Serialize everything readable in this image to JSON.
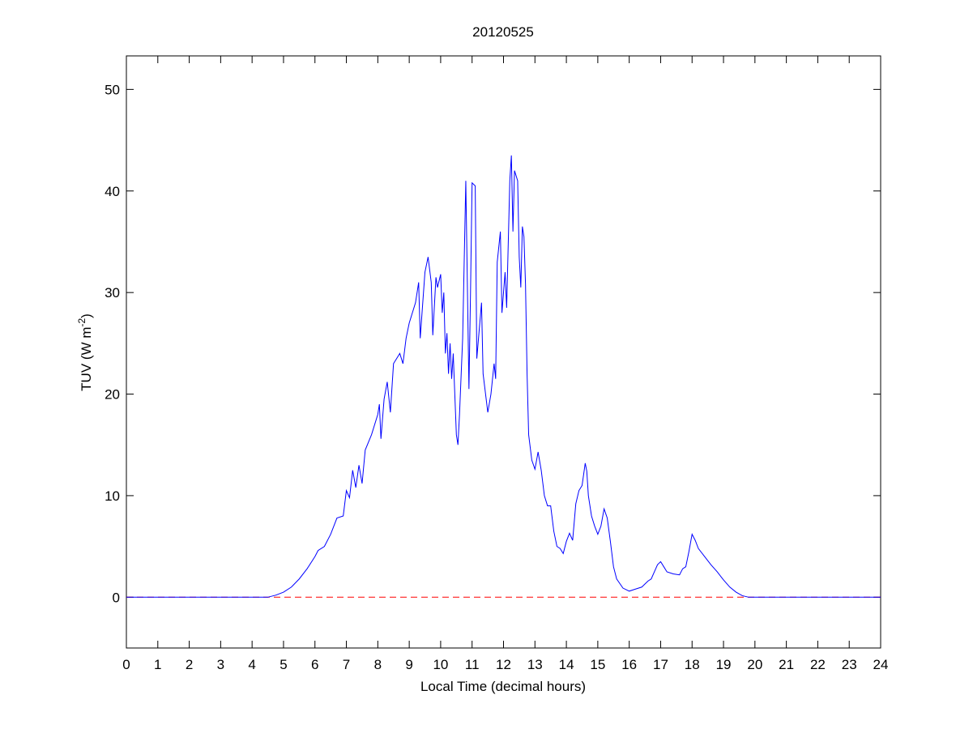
{
  "chart_data": {
    "type": "line",
    "title": "20120525",
    "xlabel": "Local Time (decimal hours)",
    "ylabel": {
      "base": "TUV (W m",
      "sup": "-2",
      "end": ")"
    },
    "xlim": [
      0,
      24
    ],
    "ylim": [
      -5,
      53.3
    ],
    "xticks": [
      0,
      1,
      2,
      3,
      4,
      5,
      6,
      7,
      8,
      9,
      10,
      11,
      12,
      13,
      14,
      15,
      16,
      17,
      18,
      19,
      20,
      21,
      22,
      23,
      24
    ],
    "yticks": [
      0,
      10,
      20,
      30,
      40,
      50
    ],
    "grid": false,
    "reference_line": {
      "value": 0,
      "color": "#ff0000",
      "dashed": true
    },
    "series": [
      {
        "color": "#0000ff",
        "x": [
          0,
          4.5,
          4.75,
          5,
          5.25,
          5.5,
          5.75,
          6,
          6.1,
          6.3,
          6.5,
          6.7,
          6.9,
          7.0,
          7.1,
          7.2,
          7.3,
          7.4,
          7.5,
          7.6,
          7.8,
          8.0,
          8.05,
          8.1,
          8.2,
          8.3,
          8.4,
          8.5,
          8.7,
          8.8,
          8.9,
          9.0,
          9.2,
          9.3,
          9.35,
          9.5,
          9.6,
          9.7,
          9.75,
          9.85,
          9.9,
          10.0,
          10.05,
          10.1,
          10.15,
          10.2,
          10.25,
          10.3,
          10.35,
          10.4,
          10.5,
          10.55,
          10.6,
          10.7,
          10.8,
          10.9,
          10.95,
          11.0,
          11.1,
          11.15,
          11.3,
          11.35,
          11.5,
          11.6,
          11.7,
          11.75,
          11.8,
          11.9,
          11.95,
          12.05,
          12.1,
          12.2,
          12.25,
          12.3,
          12.35,
          12.45,
          12.5,
          12.55,
          12.6,
          12.65,
          12.7,
          12.75,
          12.8,
          12.9,
          13.0,
          13.1,
          13.2,
          13.3,
          13.4,
          13.5,
          13.6,
          13.7,
          13.8,
          13.9,
          14.0,
          14.1,
          14.2,
          14.3,
          14.4,
          14.5,
          14.6,
          14.65,
          14.7,
          14.8,
          14.9,
          15.0,
          15.1,
          15.2,
          15.3,
          15.4,
          15.5,
          15.6,
          15.8,
          16.0,
          16.2,
          16.4,
          16.5,
          16.6,
          16.7,
          16.8,
          16.9,
          17.0,
          17.1,
          17.2,
          17.4,
          17.6,
          17.7,
          17.8,
          17.9,
          18.0,
          18.1,
          18.2,
          18.4,
          18.6,
          18.8,
          19.0,
          19.2,
          19.4,
          19.6,
          19.8,
          24
        ],
        "values": [
          0,
          0,
          0.2,
          0.5,
          1.0,
          1.8,
          2.8,
          4.0,
          4.6,
          5.0,
          6.2,
          7.8,
          8.0,
          10.5,
          9.8,
          12.5,
          10.8,
          13.0,
          11.2,
          14.5,
          16.0,
          18.0,
          19.0,
          15.6,
          19.5,
          21.2,
          18.2,
          23,
          24,
          23,
          25.5,
          27,
          29,
          31,
          25.5,
          32,
          33.5,
          31,
          25.8,
          31.5,
          30.5,
          31.8,
          28,
          30,
          24,
          26,
          22,
          25,
          21.5,
          24,
          16,
          15,
          18,
          25.5,
          41,
          20.5,
          30,
          40.8,
          40.5,
          23.5,
          29,
          22,
          18.2,
          20,
          23,
          21.5,
          33,
          36,
          28,
          32,
          28.5,
          41,
          43.5,
          36,
          42,
          41,
          33.5,
          30.5,
          36.5,
          35.5,
          30.8,
          22,
          16,
          13.5,
          12.6,
          14.3,
          12.5,
          10,
          9,
          9,
          6.5,
          5,
          4.8,
          4.3,
          5.5,
          6.3,
          5.6,
          9.2,
          10.5,
          11,
          13.2,
          12.4,
          10,
          8,
          7,
          6.2,
          7,
          8.7,
          7.8,
          5.5,
          3,
          1.8,
          0.9,
          0.6,
          0.8,
          1.0,
          1.3,
          1.6,
          1.8,
          2.5,
          3.2,
          3.5,
          3.0,
          2.5,
          2.3,
          2.2,
          2.8,
          3.0,
          4.5,
          6.2,
          5.6,
          4.8,
          4.0,
          3.2,
          2.5,
          1.7,
          1.0,
          0.5,
          0.15,
          0,
          0
        ]
      }
    ]
  }
}
